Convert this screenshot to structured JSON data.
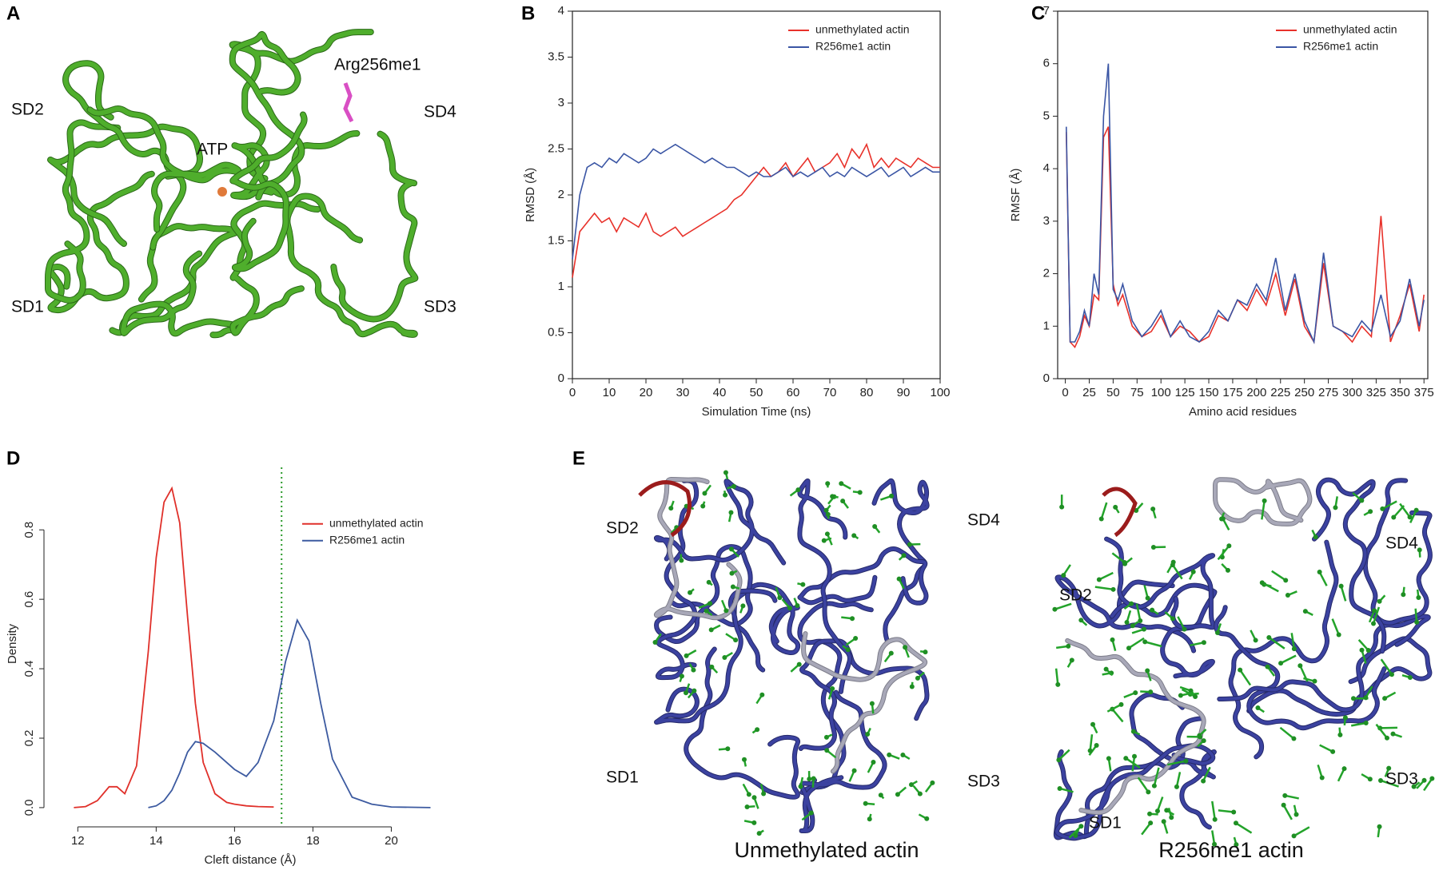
{
  "figure": {
    "panel_labels": [
      "A",
      "B",
      "C",
      "D",
      "E"
    ],
    "panel_a": {
      "labels": [
        "SD2",
        "ATP",
        "Arg256me1",
        "SD4",
        "SD1",
        "SD3"
      ]
    },
    "panel_e": {
      "left": {
        "title": "Unmethylated actin",
        "labels": [
          "SD2",
          "SD4",
          "SD1",
          "SD3"
        ]
      },
      "right": {
        "title": "R256me1 actin",
        "labels": [
          "SD2",
          "SD4",
          "SD1",
          "SD3"
        ]
      }
    }
  },
  "chart_data": [
    {
      "type": "line",
      "x_label": "Simulation Time (ns)",
      "y_label": "RMSD (Å)",
      "frame": true,
      "legend": "upper right",
      "xlim": [
        0,
        100
      ],
      "xticks": [
        0,
        10,
        20,
        30,
        40,
        50,
        60,
        70,
        80,
        90,
        100
      ],
      "ylim": [
        0,
        4
      ],
      "yticks": [
        0,
        0.5,
        1,
        1.5,
        2,
        2.5,
        3,
        3.5,
        4
      ],
      "x": [
        0,
        2,
        4,
        6,
        8,
        10,
        12,
        14,
        16,
        18,
        20,
        22,
        24,
        26,
        28,
        30,
        32,
        34,
        36,
        38,
        40,
        42,
        44,
        46,
        48,
        50,
        52,
        54,
        56,
        58,
        60,
        62,
        64,
        66,
        68,
        70,
        72,
        74,
        76,
        78,
        80,
        82,
        84,
        86,
        88,
        90,
        92,
        94,
        96,
        98,
        100
      ],
      "series": [
        {
          "name": "unmethylated actin",
          "color": "#e8312a",
          "values": [
            1.1,
            1.6,
            1.7,
            1.8,
            1.7,
            1.75,
            1.6,
            1.75,
            1.7,
            1.65,
            1.8,
            1.6,
            1.55,
            1.6,
            1.65,
            1.55,
            1.6,
            1.65,
            1.7,
            1.75,
            1.8,
            1.85,
            1.95,
            2.0,
            2.1,
            2.2,
            2.3,
            2.2,
            2.25,
            2.35,
            2.2,
            2.3,
            2.4,
            2.25,
            2.3,
            2.35,
            2.45,
            2.3,
            2.5,
            2.4,
            2.55,
            2.3,
            2.4,
            2.3,
            2.4,
            2.35,
            2.3,
            2.4,
            2.35,
            2.3,
            2.3
          ]
        },
        {
          "name": "R256me1 actin",
          "color": "#3a55a4",
          "values": [
            1.3,
            2.0,
            2.3,
            2.35,
            2.3,
            2.4,
            2.35,
            2.45,
            2.4,
            2.35,
            2.4,
            2.5,
            2.45,
            2.5,
            2.55,
            2.5,
            2.45,
            2.4,
            2.35,
            2.4,
            2.35,
            2.3,
            2.3,
            2.25,
            2.2,
            2.25,
            2.2,
            2.2,
            2.25,
            2.3,
            2.2,
            2.25,
            2.2,
            2.25,
            2.3,
            2.2,
            2.25,
            2.2,
            2.3,
            2.25,
            2.2,
            2.25,
            2.3,
            2.2,
            2.25,
            2.3,
            2.2,
            2.25,
            2.3,
            2.25,
            2.25
          ]
        }
      ]
    },
    {
      "type": "line",
      "x_label": "Amino acid residues",
      "y_label": "RMSF (Å)",
      "frame": true,
      "legend": "upper right",
      "xlim": [
        -8,
        379
      ],
      "xticks": [
        0,
        25,
        50,
        75,
        100,
        125,
        150,
        175,
        200,
        225,
        250,
        275,
        300,
        325,
        350,
        375
      ],
      "ylim": [
        0,
        7
      ],
      "yticks": [
        0,
        1,
        2,
        3,
        4,
        5,
        6,
        7
      ],
      "x": [
        1,
        5,
        10,
        15,
        20,
        25,
        30,
        35,
        40,
        45,
        50,
        55,
        60,
        70,
        80,
        90,
        100,
        110,
        120,
        130,
        140,
        150,
        160,
        170,
        180,
        190,
        200,
        210,
        220,
        230,
        240,
        250,
        260,
        270,
        280,
        290,
        300,
        310,
        320,
        330,
        340,
        350,
        360,
        370,
        375
      ],
      "series": [
        {
          "name": "unmethylated actin",
          "color": "#e8312a",
          "values": [
            4.7,
            0.7,
            0.6,
            0.8,
            1.2,
            1.0,
            1.6,
            1.5,
            4.6,
            4.8,
            1.8,
            1.4,
            1.6,
            1.0,
            0.8,
            0.9,
            1.2,
            0.8,
            1.0,
            0.9,
            0.7,
            0.8,
            1.2,
            1.1,
            1.5,
            1.3,
            1.7,
            1.4,
            2.0,
            1.2,
            1.9,
            1.0,
            0.7,
            2.2,
            1.0,
            0.9,
            0.7,
            1.0,
            0.8,
            3.1,
            0.7,
            1.2,
            1.8,
            0.9,
            1.6
          ]
        },
        {
          "name": "R256me1 actin",
          "color": "#3a55a4",
          "values": [
            4.8,
            0.7,
            0.7,
            0.9,
            1.3,
            1.0,
            2.0,
            1.6,
            5.0,
            6.0,
            1.7,
            1.5,
            1.8,
            1.1,
            0.8,
            1.0,
            1.3,
            0.8,
            1.1,
            0.8,
            0.7,
            0.9,
            1.3,
            1.1,
            1.5,
            1.4,
            1.8,
            1.5,
            2.3,
            1.3,
            2.0,
            1.1,
            0.7,
            2.4,
            1.0,
            0.9,
            0.8,
            1.1,
            0.9,
            1.6,
            0.8,
            1.1,
            1.9,
            1.0,
            1.5
          ]
        }
      ]
    },
    {
      "type": "line",
      "x_label": "Cleft distance (Å)",
      "y_label": "Density",
      "frame": false,
      "legend": "right",
      "xlim": [
        11.3,
        21.5
      ],
      "xticks": [
        12,
        14,
        16,
        18,
        20
      ],
      "ylim": [
        -0.037,
        0.98
      ],
      "yticks": [
        {
          "value": 0,
          "label": "0.0"
        },
        0.2,
        0.4,
        0.6,
        0.8
      ],
      "vline": 17.2,
      "vline_color": "#2a9a2a",
      "x": [
        11.9,
        12.2,
        12.5,
        12.8,
        13.0,
        13.2,
        13.5,
        13.8,
        14.0,
        14.2,
        14.4,
        14.6,
        14.8,
        15.0,
        15.2,
        15.5,
        15.8,
        16.0,
        16.3,
        16.6,
        17.0,
        17.3,
        17.6,
        17.9,
        18.2,
        18.5,
        19.0,
        19.5,
        20.0,
        21.0
      ],
      "series": [
        {
          "name": "unmethylated actin",
          "color": "#e0302a",
          "values": [
            0,
            0.003,
            0.02,
            0.06,
            0.06,
            0.04,
            0.12,
            0.45,
            0.72,
            0.88,
            0.92,
            0.82,
            0.55,
            0.3,
            0.13,
            0.04,
            0.015,
            0.01,
            0.005,
            0.003,
            0.002,
            null,
            null,
            null,
            null,
            null,
            null,
            null,
            null,
            null
          ]
        },
        {
          "name": "R256me1 actin",
          "color": "#3c5aa0",
          "values": [
            null,
            null,
            null,
            null,
            null,
            null,
            null,
            0,
            0.005,
            0.02,
            0.05,
            0.1,
            0.16,
            0.19,
            0.185,
            0.16,
            0.13,
            0.11,
            0.09,
            0.13,
            0.25,
            0.42,
            0.54,
            0.48,
            0.3,
            0.14,
            0.03,
            0.01,
            0.002,
            0
          ]
        }
      ]
    }
  ]
}
